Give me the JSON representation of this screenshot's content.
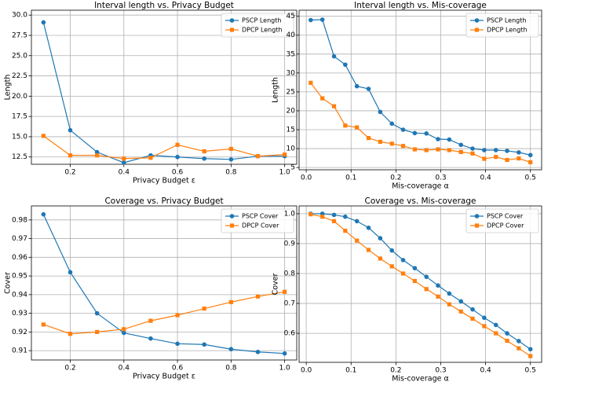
{
  "chart_data": [
    {
      "type": "line",
      "title": "Interval length vs. Privacy Budget",
      "xlabel": "Privacy Budget ε",
      "ylabel": "Length",
      "x": [
        0.1,
        0.2,
        0.3,
        0.4,
        0.5,
        0.6,
        0.7,
        0.8,
        0.9,
        1.0
      ],
      "series": [
        {
          "name": "PSCP Length",
          "color": "#1f77b4",
          "marker": "o",
          "values": [
            29.1,
            15.8,
            13.1,
            11.8,
            12.7,
            12.5,
            12.3,
            12.2,
            12.6,
            12.6
          ]
        },
        {
          "name": "DPCP Length",
          "color": "#ff7f0e",
          "marker": "s",
          "values": [
            15.1,
            12.7,
            12.7,
            12.3,
            12.4,
            14.0,
            13.2,
            13.5,
            12.6,
            12.8
          ]
        }
      ],
      "xlim": [
        0.055,
        1.045
      ],
      "xticks": [
        0.2,
        0.4,
        0.6,
        0.8,
        {
          "value": 1,
          "label": "1.0"
        }
      ],
      "ylim": [
        11.6,
        30.6
      ],
      "yticks": [
        12.5,
        {
          "value": 15,
          "label": "15.0"
        },
        17.5,
        {
          "value": 20,
          "label": "20.0"
        },
        22.5,
        {
          "value": 25,
          "label": "25.0"
        },
        27.5,
        {
          "value": 30,
          "label": "30.0"
        }
      ],
      "grid": true,
      "legend": "upper right"
    },
    {
      "type": "line",
      "title": "Interval length vs. Mis-coverage",
      "xlabel": "Mis-coverage α",
      "ylabel": "Length",
      "x": [
        0.01,
        0.036,
        0.062,
        0.087,
        0.113,
        0.139,
        0.165,
        0.191,
        0.216,
        0.242,
        0.268,
        0.294,
        0.319,
        0.345,
        0.371,
        0.397,
        0.423,
        0.448,
        0.474,
        0.5
      ],
      "series": [
        {
          "name": "PSCP Length",
          "color": "#1f77b4",
          "marker": "o",
          "values": [
            44.0,
            44.1,
            34.4,
            32.2,
            26.5,
            25.8,
            19.7,
            16.6,
            15.0,
            14.1,
            14.0,
            12.5,
            12.4,
            11.0,
            10.0,
            9.6,
            9.6,
            9.4,
            9.0,
            8.3
          ]
        },
        {
          "name": "DPCP Length",
          "color": "#ff7f0e",
          "marker": "s",
          "values": [
            27.4,
            23.3,
            21.2,
            16.1,
            15.6,
            12.8,
            11.8,
            11.3,
            10.7,
            9.8,
            9.6,
            9.8,
            9.6,
            9.1,
            8.7,
            7.3,
            7.8,
            7.0,
            7.4,
            6.4
          ]
        }
      ],
      "xlim": [
        -0.016,
        0.525
      ],
      "xticks": [
        {
          "value": 0,
          "label": "0.0"
        },
        0.1,
        0.2,
        0.3,
        0.4,
        0.5
      ],
      "ylim": [
        4.4,
        46.6
      ],
      "yticks": [
        5,
        10,
        15,
        20,
        25,
        30,
        35,
        40,
        45
      ],
      "grid": true,
      "legend": "upper right"
    },
    {
      "type": "line",
      "title": "Coverage vs. Privacy Budget",
      "xlabel": "Privacy Budget ε",
      "ylabel": "Cover",
      "x": [
        0.1,
        0.2,
        0.3,
        0.4,
        0.5,
        0.6,
        0.7,
        0.8,
        0.9,
        1.0
      ],
      "series": [
        {
          "name": "PSCP Cover",
          "color": "#1f77b4",
          "marker": "o",
          "values": [
            0.983,
            0.952,
            0.93,
            0.9195,
            0.9165,
            0.9137,
            0.9133,
            0.9108,
            0.9093,
            0.9085
          ]
        },
        {
          "name": "DPCP Cover",
          "color": "#ff7f0e",
          "marker": "s",
          "values": [
            0.924,
            0.919,
            0.92,
            0.9215,
            0.926,
            0.929,
            0.9325,
            0.936,
            0.939,
            0.9415
          ]
        }
      ],
      "xlim": [
        0.055,
        1.045
      ],
      "xticks": [
        0.2,
        0.4,
        0.6,
        0.8,
        {
          "value": 1,
          "label": "1.0"
        }
      ],
      "ylim": [
        0.905,
        0.9875
      ],
      "yticks": [
        0.91,
        0.92,
        0.93,
        0.94,
        0.95,
        0.96,
        0.97,
        0.98
      ],
      "grid": true,
      "legend": "upper right"
    },
    {
      "type": "line",
      "title": "Coverage vs. Mis-coverage",
      "xlabel": "Mis-coverage α",
      "ylabel": "Cover",
      "x": [
        0.01,
        0.036,
        0.062,
        0.087,
        0.113,
        0.139,
        0.165,
        0.191,
        0.216,
        0.242,
        0.268,
        0.294,
        0.319,
        0.345,
        0.371,
        0.397,
        0.423,
        0.448,
        0.474,
        0.5
      ],
      "series": [
        {
          "name": "PSCP Cover",
          "color": "#1f77b4",
          "marker": "o",
          "values": [
            1.0,
            1.0,
            0.996,
            0.99,
            0.975,
            0.953,
            0.918,
            0.877,
            0.845,
            0.818,
            0.789,
            0.76,
            0.733,
            0.707,
            0.68,
            0.652,
            0.628,
            0.6,
            0.574,
            0.547
          ]
        },
        {
          "name": "DPCP Cover",
          "color": "#ff7f0e",
          "marker": "s",
          "values": [
            0.998,
            0.99,
            0.975,
            0.943,
            0.91,
            0.879,
            0.85,
            0.824,
            0.8,
            0.775,
            0.748,
            0.723,
            0.697,
            0.673,
            0.649,
            0.624,
            0.6,
            0.575,
            0.55,
            0.524
          ]
        }
      ],
      "xlim": [
        -0.016,
        0.525
      ],
      "xticks": [
        {
          "value": 0,
          "label": "0.0"
        },
        0.1,
        0.2,
        0.3,
        0.4,
        0.5
      ],
      "ylim": [
        0.503,
        1.026
      ],
      "yticks": [
        0.6,
        0.7,
        0.8,
        0.9,
        {
          "value": 1,
          "label": "1.0"
        }
      ],
      "grid": true,
      "legend": "upper right"
    }
  ]
}
